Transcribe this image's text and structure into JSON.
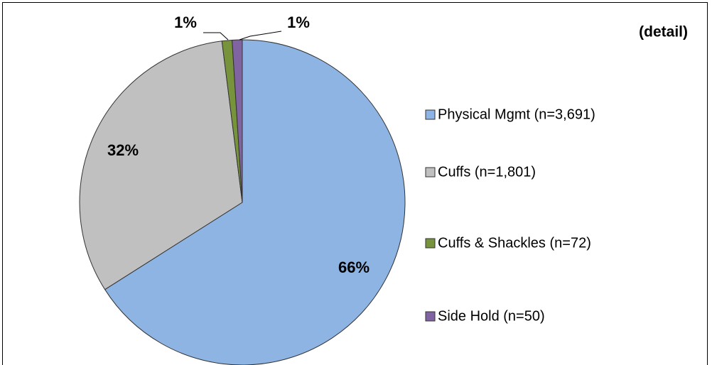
{
  "chart_data": {
    "type": "pie",
    "title": "(detail)",
    "categories": [
      "Physical Mgmt (n=3,691)",
      "Cuffs (n=1,801)",
      "Cuffs & Shackles (n=72)",
      "Side Hold (n=50)"
    ],
    "values": [
      66,
      32,
      1,
      1
    ],
    "value_labels": [
      "66%",
      "32%",
      "1%",
      "1%"
    ],
    "colors": [
      "#8eb4e3",
      "#c0c0c0",
      "#77933c",
      "#8064a2"
    ],
    "legend": "right"
  }
}
